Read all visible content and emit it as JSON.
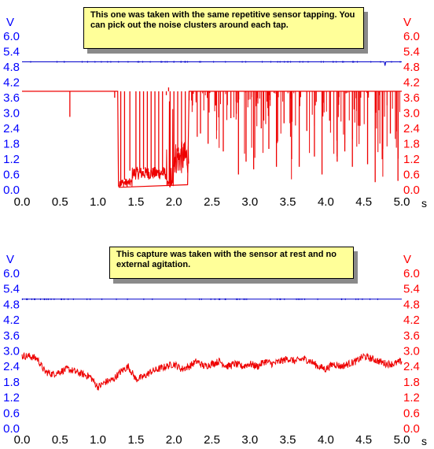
{
  "colors": {
    "left_axis": "#0000ff",
    "right_axis": "#ff0000",
    "channel_a": "#0000cc",
    "channel_b": "#ee0000",
    "note_bg": "#ffff99"
  },
  "chart_data": [
    {
      "type": "line",
      "annotation": "This one was taken with the same repetitive sensor tapping. You can pick out the noise clusters around each tap.",
      "xlabel": "s",
      "ylabel_left": "V",
      "ylabel_right": "V",
      "x_ticks": [
        "0.0",
        "0.5",
        "1.0",
        "1.5",
        "2.0",
        "2.5",
        "3.0",
        "3.5",
        "4.0",
        "4.5",
        "5.0"
      ],
      "y_ticks": [
        "6.0",
        "5.4",
        "4.8",
        "4.2",
        "3.6",
        "3.0",
        "2.4",
        "1.8",
        "1.2",
        "0.6",
        "0.0"
      ],
      "xlim": [
        0,
        5
      ],
      "ylim": [
        0,
        6
      ],
      "grid": false,
      "series": [
        {
          "color": "#0000cc",
          "x": [
            0,
            4.77,
            4.78,
            4.79,
            5.0
          ],
          "y": [
            5.0,
            5.0,
            4.85,
            5.0,
            5.0
          ]
        },
        {
          "color": "#ee0000",
          "baseline": {
            "x": [
              0,
              1.26,
              1.27,
              1.28,
              2.18,
              2.2,
              5.0
            ],
            "y": [
              3.85,
              3.85,
              0.15,
              0.1,
              0.2,
              3.85,
              3.85
            ]
          },
          "x": [
            0.63,
            0.64,
            1.22,
            1.3,
            1.35,
            1.42,
            1.5,
            1.55,
            1.6,
            1.65,
            1.7,
            1.75,
            1.8,
            1.85,
            1.9,
            1.93,
            1.95,
            2.0,
            2.05,
            2.1,
            2.15,
            2.2,
            2.35,
            2.45,
            2.55,
            2.65,
            2.75,
            2.85,
            2.95,
            3.05,
            3.15,
            3.25,
            3.35,
            3.45,
            3.55,
            3.65,
            3.75,
            3.85,
            3.95,
            4.05,
            4.15,
            4.25,
            4.35,
            4.45,
            4.55,
            4.65,
            4.75,
            4.85,
            4.95,
            4.99
          ],
          "y": [
            2.85,
            3.85,
            3.6,
            0.15,
            0.4,
            0.75,
            0.65,
            0.7,
            0.8,
            0.6,
            0.7,
            0.65,
            0.55,
            0.7,
            3.7,
            4.0,
            0.1,
            0.9,
            1.5,
            1.2,
            1.4,
            3.5,
            2.2,
            1.8,
            3.3,
            1.5,
            2.8,
            0.6,
            1.1,
            0.8,
            2.4,
            1.6,
            0.9,
            2.6,
            1.2,
            0.9,
            2.3,
            1.3,
            0.6,
            2.7,
            1.1,
            1.5,
            0.9,
            2.5,
            1.0,
            0.3,
            1.6,
            2.2,
            0.35,
            3.85
          ]
        }
      ]
    },
    {
      "type": "line",
      "annotation": "This capture was taken with the sensor at rest and no external agitation.",
      "xlabel": "s",
      "ylabel_left": "V",
      "ylabel_right": "V",
      "x_ticks": [
        "0.0",
        "0.5",
        "1.0",
        "1.5",
        "2.0",
        "2.5",
        "3.0",
        "3.5",
        "4.0",
        "4.5",
        "5.0"
      ],
      "y_ticks": [
        "6.0",
        "5.4",
        "4.8",
        "4.2",
        "3.6",
        "3.0",
        "2.4",
        "1.8",
        "1.2",
        "0.6",
        "0.0"
      ],
      "xlim": [
        0,
        5
      ],
      "ylim": [
        0,
        6
      ],
      "grid": false,
      "series": [
        {
          "color": "#0000cc",
          "x": [
            0,
            5.0
          ],
          "y": [
            5.0,
            5.0
          ]
        },
        {
          "color": "#ee0000",
          "x": [
            0.0,
            0.1,
            0.2,
            0.3,
            0.4,
            0.5,
            0.6,
            0.7,
            0.8,
            0.9,
            1.0,
            1.1,
            1.2,
            1.3,
            1.4,
            1.5,
            1.6,
            1.7,
            1.8,
            1.9,
            2.0,
            2.1,
            2.2,
            2.3,
            2.4,
            2.5,
            2.6,
            2.7,
            2.8,
            2.9,
            3.0,
            3.1,
            3.2,
            3.3,
            3.4,
            3.5,
            3.6,
            3.7,
            3.8,
            3.9,
            4.0,
            4.1,
            4.2,
            4.3,
            4.4,
            4.5,
            4.6,
            4.7,
            4.8,
            4.9,
            5.0
          ],
          "y": [
            2.8,
            2.8,
            2.7,
            2.2,
            2.1,
            2.2,
            2.3,
            2.2,
            2.1,
            2.0,
            1.6,
            1.8,
            1.9,
            2.2,
            2.4,
            1.9,
            2.0,
            2.2,
            2.3,
            2.4,
            2.5,
            2.3,
            2.4,
            2.6,
            2.4,
            2.5,
            2.6,
            2.4,
            2.5,
            2.4,
            2.5,
            2.4,
            2.6,
            2.5,
            2.6,
            2.7,
            2.6,
            2.7,
            2.6,
            2.4,
            2.3,
            2.5,
            2.4,
            2.5,
            2.6,
            2.8,
            2.7,
            2.6,
            2.5,
            2.5,
            2.6
          ]
        }
      ]
    }
  ]
}
